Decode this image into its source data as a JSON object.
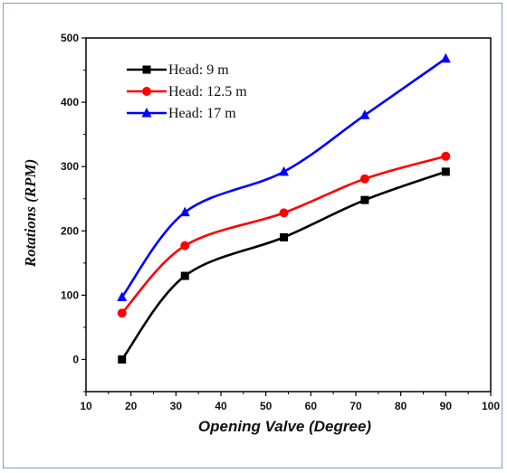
{
  "chart_data": {
    "type": "line",
    "title": "",
    "xlabel": "Opening Valve (Degree)",
    "ylabel": "Rotations (RPM)",
    "xlim": [
      10,
      100
    ],
    "ylim": [
      -50,
      500
    ],
    "xticks": [
      10,
      20,
      30,
      40,
      50,
      60,
      70,
      80,
      90,
      100
    ],
    "yticks": [
      0,
      100,
      200,
      300,
      400,
      500
    ],
    "legend_position": "top-left",
    "grid": false,
    "series": [
      {
        "name": "Head: 9 m",
        "color": "#000000",
        "marker": "square",
        "x": [
          18,
          32,
          54,
          72,
          90
        ],
        "y": [
          0,
          130,
          190,
          248,
          292
        ]
      },
      {
        "name": "Head: 12.5 m",
        "color": "#ff0000",
        "marker": "circle",
        "x": [
          18,
          32,
          54,
          72,
          90
        ],
        "y": [
          72,
          177,
          228,
          281,
          316
        ]
      },
      {
        "name": "Head: 17 m",
        "color": "#0000ff",
        "marker": "triangle",
        "x": [
          18,
          32,
          54,
          72,
          90
        ],
        "y": [
          97,
          229,
          292,
          380,
          468
        ]
      }
    ]
  }
}
